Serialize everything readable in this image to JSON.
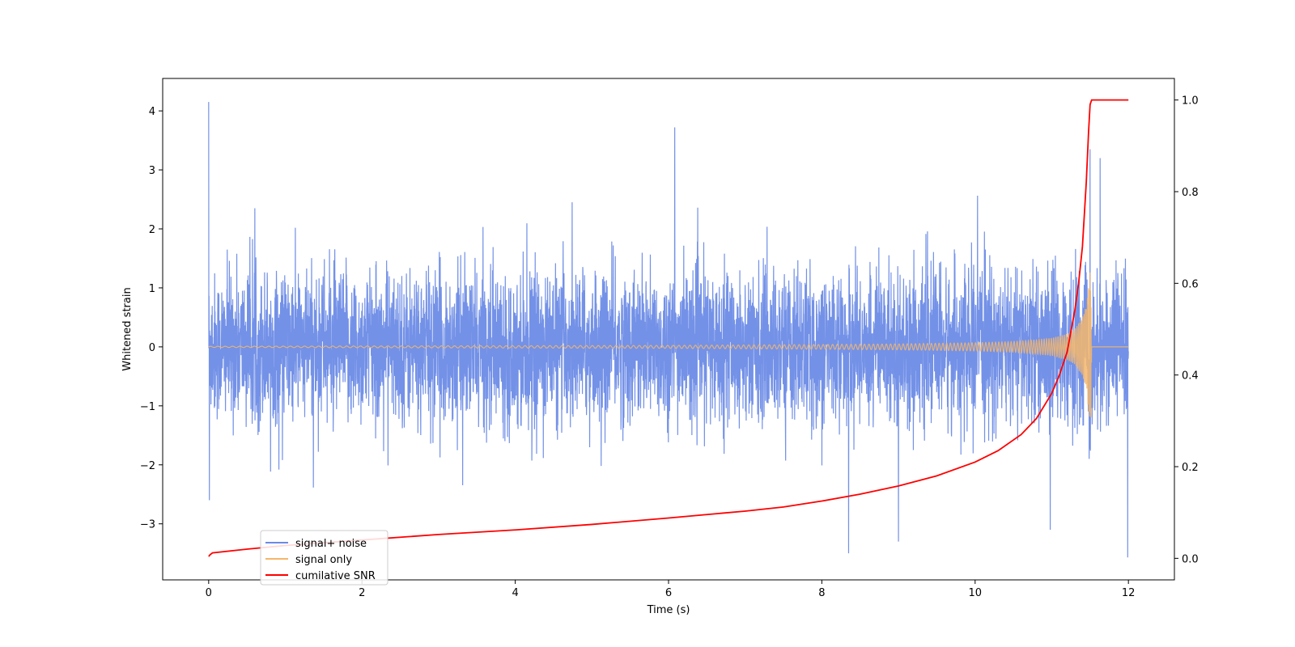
{
  "chart_data": {
    "type": "line",
    "xlabel": "Time (s)",
    "ylabel": "Whitened strain",
    "y2label": "",
    "xlim": [
      -0.6,
      12.6
    ],
    "ylim": [
      -3.95,
      4.55
    ],
    "y2lim": [
      -0.047,
      1.047
    ],
    "xticks": [
      0,
      2,
      4,
      6,
      8,
      10,
      12
    ],
    "yticks": [
      -3,
      -2,
      -1,
      0,
      1,
      2,
      3,
      4
    ],
    "y2ticks": [
      0.0,
      0.2,
      0.4,
      0.6,
      0.8,
      1.0
    ],
    "xtick_labels": [
      "0",
      "2",
      "4",
      "6",
      "8",
      "10",
      "12"
    ],
    "ytick_labels": [
      "−3",
      "−2",
      "−1",
      "0",
      "1",
      "2",
      "3",
      "4"
    ],
    "y2tick_labels": [
      "0.0",
      "0.2",
      "0.4",
      "0.6",
      "0.8",
      "1.0"
    ],
    "grid": false,
    "legend_position": "lower-left",
    "series": [
      {
        "name": "signal+ noise",
        "color": "#6b8be6",
        "axis": "left",
        "description_values": {
          "x_range": [
            0,
            12
          ],
          "typical_range": [
            -1.9,
            2.2
          ],
          "peaks": [
            [
              0.0,
              4.15
            ],
            [
              0.01,
              -2.6
            ],
            [
              6.08,
              3.72
            ],
            [
              8.35,
              -3.5
            ],
            [
              11.5,
              3.35
            ],
            [
              11.63,
              3.2
            ],
            [
              11.99,
              -3.57
            ],
            [
              9.0,
              -3.3
            ],
            [
              10.98,
              -3.1
            ]
          ]
        }
      },
      {
        "name": "signal only",
        "color": "#f5b66b",
        "axis": "left",
        "x": [
          0,
          2,
          4,
          6,
          8,
          9,
          10,
          10.5,
          10.8,
          11.0,
          11.2,
          11.3,
          11.4,
          11.45,
          11.5,
          11.51,
          11.52,
          12
        ],
        "envelope": [
          0.01,
          0.015,
          0.02,
          0.025,
          0.04,
          0.05,
          0.07,
          0.09,
          0.12,
          0.15,
          0.22,
          0.3,
          0.5,
          0.7,
          1.35,
          1.3,
          0.0,
          0.0
        ]
      },
      {
        "name": "cumilative SNR",
        "color": "#ff0000",
        "axis": "right",
        "x": [
          0,
          0.02,
          0.05,
          0.5,
          1,
          2,
          3,
          4,
          5,
          6,
          7,
          7.5,
          8,
          8.5,
          9,
          9.5,
          10,
          10.3,
          10.6,
          10.8,
          11.0,
          11.1,
          11.2,
          11.3,
          11.35,
          11.4,
          11.45,
          11.48,
          11.5,
          11.52,
          12
        ],
        "y": [
          0.004,
          0.008,
          0.012,
          0.02,
          0.028,
          0.04,
          0.052,
          0.062,
          0.074,
          0.088,
          0.103,
          0.112,
          0.125,
          0.14,
          0.158,
          0.18,
          0.21,
          0.235,
          0.27,
          0.305,
          0.36,
          0.4,
          0.45,
          0.54,
          0.6,
          0.68,
          0.82,
          0.93,
          0.99,
          1.0,
          1.0
        ]
      }
    ]
  }
}
